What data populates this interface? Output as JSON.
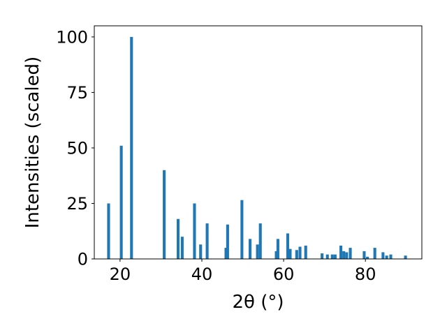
{
  "chart_data": {
    "type": "bar",
    "xlabel": "2θ (°)",
    "ylabel": "Intensities (scaled)",
    "xlim": [
      13.7,
      93.8
    ],
    "ylim": [
      0,
      105
    ],
    "xticks": [
      20,
      40,
      60,
      80
    ],
    "yticks": [
      0,
      25,
      50,
      75,
      100
    ],
    "grid": false,
    "bar_color": "#1f77b4",
    "bar_width": 0.7,
    "series": [
      {
        "x": [
          17.2,
          20.3,
          22.8,
          30.8,
          34.2,
          35.2,
          38.2,
          39.7,
          41.3,
          45.9,
          46.3,
          49.8,
          51.8,
          53.6,
          54.3,
          58.2,
          58.6,
          61.0,
          61.6,
          63.2,
          64.0,
          65.4,
          69.4,
          70.7,
          71.9,
          72.6,
          74.0,
          74.7,
          75.4,
          76.3,
          79.7,
          80.5,
          82.3,
          84.3,
          85.2,
          86.2,
          89.8
        ],
        "values": [
          25,
          51,
          100,
          40,
          18,
          10,
          25,
          6.5,
          16,
          5,
          15.5,
          26.5,
          9,
          6.5,
          16,
          3.5,
          9,
          11.5,
          4.5,
          4,
          5.5,
          6,
          2.5,
          2,
          2,
          2,
          6,
          3.5,
          3,
          5,
          3.5,
          1,
          5,
          3,
          1.5,
          2,
          1.5
        ]
      }
    ]
  }
}
